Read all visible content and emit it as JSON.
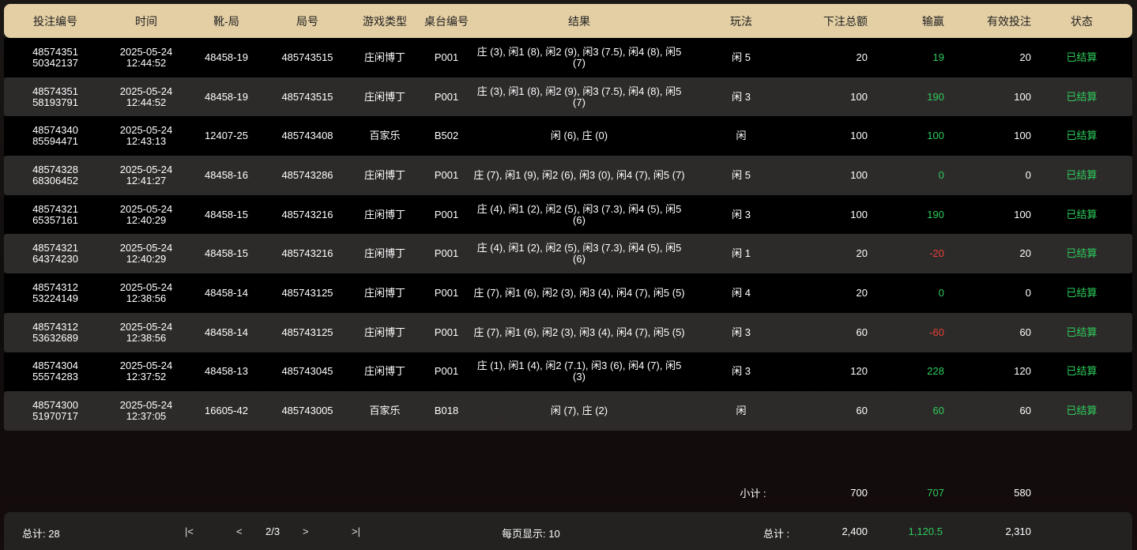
{
  "columns": [
    "投注编号",
    "时间",
    "靴-局",
    "局号",
    "游戏类型",
    "桌台编号",
    "结果",
    "玩法",
    "下注总额",
    "输赢",
    "有效投注",
    "状态"
  ],
  "rows": [
    {
      "id1": "48574351",
      "id2": "50342137",
      "date": "2025-05-24",
      "time": "12:44:52",
      "shoe": "48458-19",
      "round": "485743515",
      "game": "庄闲博丁",
      "table": "P001",
      "result": "庄 (3), 闲1 (8), 闲2 (9), 闲3 (7.5), 闲4 (8), 闲5 (7)",
      "play": "闲 5",
      "bet": "20",
      "win": "19",
      "winSign": "pos",
      "valid": "20",
      "status": "已结算"
    },
    {
      "id1": "48574351",
      "id2": "58193791",
      "date": "2025-05-24",
      "time": "12:44:52",
      "shoe": "48458-19",
      "round": "485743515",
      "game": "庄闲博丁",
      "table": "P001",
      "result": "庄 (3), 闲1 (8), 闲2 (9), 闲3 (7.5), 闲4 (8), 闲5 (7)",
      "play": "闲 3",
      "bet": "100",
      "win": "190",
      "winSign": "pos",
      "valid": "100",
      "status": "已结算"
    },
    {
      "id1": "48574340",
      "id2": "85594471",
      "date": "2025-05-24",
      "time": "12:43:13",
      "shoe": "12407-25",
      "round": "485743408",
      "game": "百家乐",
      "table": "B502",
      "result": "闲 (6), 庄 (0)",
      "play": "闲",
      "bet": "100",
      "win": "100",
      "winSign": "pos",
      "valid": "100",
      "status": "已结算"
    },
    {
      "id1": "48574328",
      "id2": "68306452",
      "date": "2025-05-24",
      "time": "12:41:27",
      "shoe": "48458-16",
      "round": "485743286",
      "game": "庄闲博丁",
      "table": "P001",
      "result": "庄 (7), 闲1 (9), 闲2 (6), 闲3 (0), 闲4 (7), 闲5 (7)",
      "play": "闲 5",
      "bet": "100",
      "win": "0",
      "winSign": "pos",
      "valid": "0",
      "status": "已结算"
    },
    {
      "id1": "48574321",
      "id2": "65357161",
      "date": "2025-05-24",
      "time": "12:40:29",
      "shoe": "48458-15",
      "round": "485743216",
      "game": "庄闲博丁",
      "table": "P001",
      "result": "庄 (4), 闲1 (2), 闲2 (5), 闲3 (7.3), 闲4 (5), 闲5 (6)",
      "play": "闲 3",
      "bet": "100",
      "win": "190",
      "winSign": "pos",
      "valid": "100",
      "status": "已结算"
    },
    {
      "id1": "48574321",
      "id2": "64374230",
      "date": "2025-05-24",
      "time": "12:40:29",
      "shoe": "48458-15",
      "round": "485743216",
      "game": "庄闲博丁",
      "table": "P001",
      "result": "庄 (4), 闲1 (2), 闲2 (5), 闲3 (7.3), 闲4 (5), 闲5 (6)",
      "play": "闲 1",
      "bet": "20",
      "win": "-20",
      "winSign": "neg",
      "valid": "20",
      "status": "已结算"
    },
    {
      "id1": "48574312",
      "id2": "53224149",
      "date": "2025-05-24",
      "time": "12:38:56",
      "shoe": "48458-14",
      "round": "485743125",
      "game": "庄闲博丁",
      "table": "P001",
      "result": "庄 (7), 闲1 (6), 闲2 (3), 闲3 (4), 闲4 (7), 闲5 (5)",
      "play": "闲 4",
      "bet": "20",
      "win": "0",
      "winSign": "pos",
      "valid": "0",
      "status": "已结算"
    },
    {
      "id1": "48574312",
      "id2": "53632689",
      "date": "2025-05-24",
      "time": "12:38:56",
      "shoe": "48458-14",
      "round": "485743125",
      "game": "庄闲博丁",
      "table": "P001",
      "result": "庄 (7), 闲1 (6), 闲2 (3), 闲3 (4), 闲4 (7), 闲5 (5)",
      "play": "闲 3",
      "bet": "60",
      "win": "-60",
      "winSign": "neg",
      "valid": "60",
      "status": "已结算"
    },
    {
      "id1": "48574304",
      "id2": "55574283",
      "date": "2025-05-24",
      "time": "12:37:52",
      "shoe": "48458-13",
      "round": "485743045",
      "game": "庄闲博丁",
      "table": "P001",
      "result": "庄 (1), 闲1 (4), 闲2 (7.1), 闲3 (6), 闲4 (7), 闲5 (3)",
      "play": "闲 3",
      "bet": "120",
      "win": "228",
      "winSign": "pos",
      "valid": "120",
      "status": "已结算"
    },
    {
      "id1": "48574300",
      "id2": "51970717",
      "date": "2025-05-24",
      "time": "12:37:05",
      "shoe": "16605-42",
      "round": "485743005",
      "game": "百家乐",
      "table": "B018",
      "result": "闲 (7), 庄 (2)",
      "play": "闲",
      "bet": "60",
      "win": "60",
      "winSign": "pos",
      "valid": "60",
      "status": "已结算"
    }
  ],
  "subtotal": {
    "label": "小计 :",
    "bet": "700",
    "win": "707",
    "valid": "580"
  },
  "footer": {
    "total_count": "总计:  28",
    "first": "|<",
    "prev": "<",
    "page": "2/3",
    "next": ">",
    "last": ">|",
    "per_page": "每页显示:  10",
    "total_label": "总计 :",
    "bet": "2,400",
    "win": "1,120.5",
    "valid": "2,310"
  },
  "colors": {
    "header_bg": "#e4cfa4",
    "positive": "#2ecc5c",
    "negative": "#e8413a"
  }
}
